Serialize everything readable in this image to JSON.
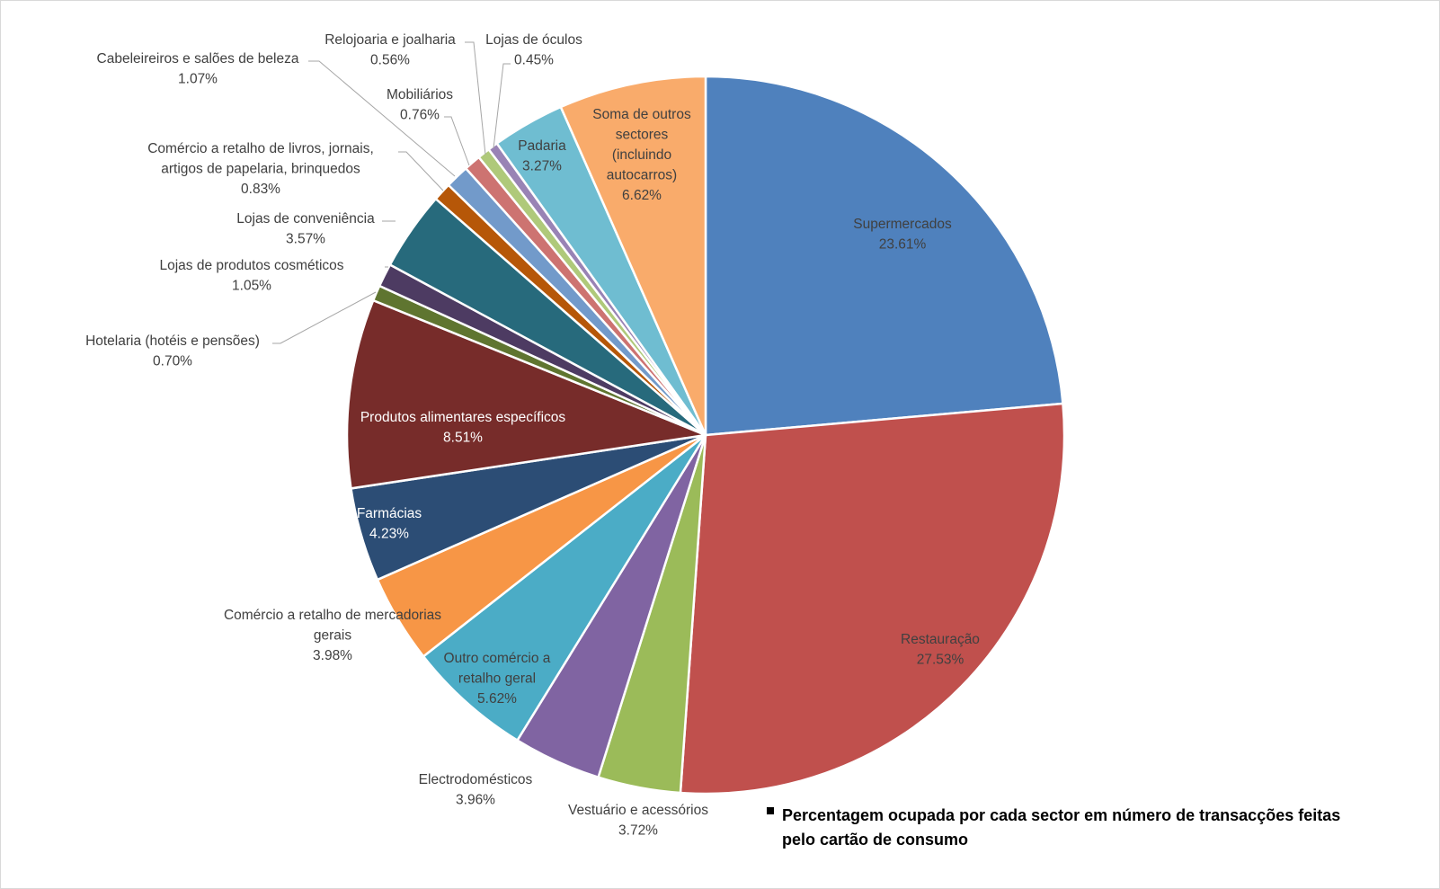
{
  "chart_data": {
    "type": "pie",
    "title": "",
    "start_angle": "12 o'clock, clockwise",
    "slices": [
      {
        "label": [
          "Supermercados"
        ],
        "value": 23.61,
        "value_label": "23.61%",
        "color": "#4F81BD"
      },
      {
        "label": [
          "Restauração"
        ],
        "value": 27.53,
        "value_label": "27.53%",
        "color": "#C0504D"
      },
      {
        "label": [
          "Vestuário e acessórios"
        ],
        "value": 3.72,
        "value_label": "3.72%",
        "color": "#9BBB59"
      },
      {
        "label": [
          "Electrodomésticos"
        ],
        "value": 3.96,
        "value_label": "3.96%",
        "color": "#8064A2"
      },
      {
        "label": [
          "Outro comércio a",
          "retalho geral"
        ],
        "value": 5.62,
        "value_label": "5.62%",
        "color": "#4BACC6"
      },
      {
        "label": [
          "Comércio a retalho de mercadorias",
          "gerais"
        ],
        "value": 3.98,
        "value_label": "3.98%",
        "color": "#F79646"
      },
      {
        "label": [
          "Farmácias"
        ],
        "value": 4.23,
        "value_label": "4.23%",
        "color": "#2C4D75"
      },
      {
        "label": [
          "Produtos alimentares específicos"
        ],
        "value": 8.51,
        "value_label": "8.51%",
        "color": "#772C2A"
      },
      {
        "label": [
          "Hotelaria (hotéis e pensões)"
        ],
        "value": 0.7,
        "value_label": "0.70%",
        "color": "#5F7530"
      },
      {
        "label": [
          "Lojas de produtos cosméticos"
        ],
        "value": 1.05,
        "value_label": "1.05%",
        "color": "#4D3B62"
      },
      {
        "label": [
          "Lojas de conveniência"
        ],
        "value": 3.57,
        "value_label": "3.57%",
        "color": "#276A7C"
      },
      {
        "label": [
          "Comércio a retalho de livros, jornais,",
          "artigos de papelaria, brinquedos"
        ],
        "value": 0.83,
        "value_label": "0.83%",
        "color": "#B65708"
      },
      {
        "label": [
          "Cabeleireiros e salões de beleza"
        ],
        "value": 1.07,
        "value_label": "1.07%",
        "color": "#729ACA"
      },
      {
        "label": [
          "Mobiliários"
        ],
        "value": 0.76,
        "value_label": "0.76%",
        "color": "#CD7371"
      },
      {
        "label": [
          "Relojoaria e joalharia"
        ],
        "value": 0.56,
        "value_label": "0.56%",
        "color": "#AFC97A"
      },
      {
        "label": [
          "Lojas de óculos"
        ],
        "value": 0.45,
        "value_label": "0.45%",
        "color": "#9983B5"
      },
      {
        "label": [
          "Padaria"
        ],
        "value": 3.27,
        "value_label": "3.27%",
        "color": "#6FBDD1"
      },
      {
        "label": [
          "Soma de outros",
          "sectores",
          "(incluindo",
          "autocarros)"
        ],
        "value": 6.62,
        "value_label": "6.62%",
        "color": "#F9AB6B"
      }
    ],
    "legend": {
      "position": "bottom-right",
      "lines": [
        "Percentagem ocupada por cada sector em número de transacções feitas",
        "pelo cartão de consumo"
      ],
      "marker_color": "#000000"
    }
  }
}
